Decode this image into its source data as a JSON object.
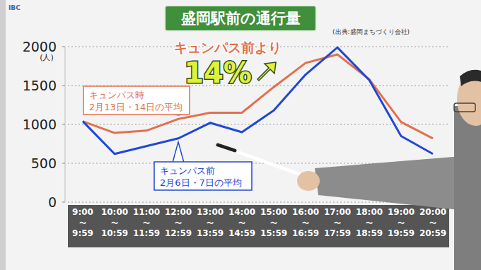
{
  "chart_data": {
    "type": "line",
    "title": "盛岡駅前の通行量",
    "source": "(出典:盛岡まちづくり会社)",
    "logo": "IBC",
    "y_label": "(人)",
    "annotations": [
      "キュンパス前より",
      "14%"
    ],
    "categories": [
      "9:00〜9:59",
      "10:00〜10:59",
      "11:00〜11:59",
      "12:00〜12:59",
      "13:00〜13:59",
      "14:00〜14:59",
      "15:00〜15:59",
      "16:00〜16:59",
      "17:00〜17:59",
      "18:00〜18:59",
      "19:00〜19:59",
      "20:00〜20:59"
    ],
    "series": [
      {
        "name": "キュンパス時 2月13日・14日の平均",
        "color": "#e2704e",
        "values": [
          1040,
          890,
          920,
          1070,
          1150,
          1150,
          1480,
          1790,
          1900,
          1580,
          1030,
          820
        ]
      },
      {
        "name": "キュンパス前 2月6日・7日の平均",
        "color": "#2048d8",
        "values": [
          1040,
          620,
          720,
          820,
          1020,
          900,
          1180,
          1640,
          1990,
          1570,
          850,
          620
        ]
      }
    ],
    "ylim": [
      0,
      2000
    ],
    "yticks": [
      0,
      500,
      1000,
      1500,
      2000
    ],
    "grid": true,
    "data_labels": false
  }
}
